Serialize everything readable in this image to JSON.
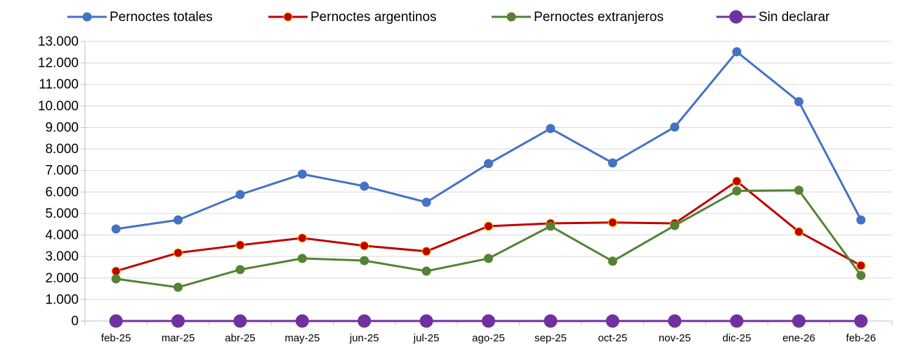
{
  "chart_data": {
    "type": "line",
    "categories": [
      "feb-25",
      "mar-25",
      "abr-25",
      "may-25",
      "jun-25",
      "jul-25",
      "ago-25",
      "sep-25",
      "oct-25",
      "nov-25",
      "dic-25",
      "ene-26",
      "feb-26"
    ],
    "series": [
      {
        "name": "Pernoctes totales",
        "color": "#4472c4",
        "values": [
          4280,
          4700,
          5880,
          6830,
          6270,
          5520,
          7320,
          8950,
          7350,
          9020,
          12520,
          10200,
          4700
        ]
      },
      {
        "name": "Pernoctes argentinos",
        "color": "#c00000",
        "values": [
          2320,
          3170,
          3530,
          3860,
          3500,
          3240,
          4410,
          4540,
          4580,
          4540,
          6500,
          4150,
          2580
        ]
      },
      {
        "name": "Pernoctes extranjeros",
        "color": "#548235",
        "values": [
          1960,
          1570,
          2390,
          2910,
          2810,
          2320,
          2910,
          4410,
          2780,
          4440,
          6050,
          6080,
          2120
        ]
      },
      {
        "name": "Sin declarar",
        "color": "#7030a0",
        "values": [
          0,
          0,
          0,
          0,
          0,
          0,
          0,
          0,
          0,
          0,
          0,
          0,
          0
        ]
      }
    ],
    "ylim": [
      0,
      13000
    ],
    "yticks": [
      0,
      {
        "value": 1000,
        "label": "1.000"
      },
      {
        "value": 2000,
        "label": "2.000"
      },
      {
        "value": 3000,
        "label": "3.000"
      },
      {
        "value": 4000,
        "label": "4.000"
      },
      {
        "value": 5000,
        "label": "5.000"
      },
      {
        "value": 6000,
        "label": "6.000"
      },
      {
        "value": 7000,
        "label": "7.000"
      },
      {
        "value": 8000,
        "label": "8.000"
      },
      {
        "value": 9000,
        "label": "9.000"
      },
      {
        "value": 10000,
        "label": "10.000"
      },
      {
        "value": 11000,
        "label": "11.000"
      },
      {
        "value": 12000,
        "label": "12.000"
      },
      {
        "value": 13000,
        "label": "13.000"
      }
    ],
    "grid": true,
    "legend": "top"
  }
}
